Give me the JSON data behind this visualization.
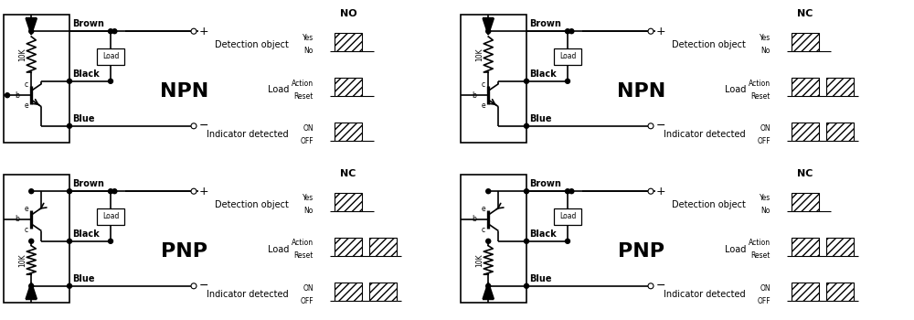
{
  "fig_w": 10.0,
  "fig_h": 3.5,
  "dpi": 100,
  "bg": "#ffffff",
  "lc": "#000000",
  "lw": 1.0,
  "panels": [
    {
      "col": 0,
      "row": 0,
      "transistor": "NPN",
      "mode": "NO",
      "timing": [
        {
          "left": "Detection object",
          "subs": [
            "Yes",
            "No"
          ],
          "type": "single_right"
        },
        {
          "left": "Load",
          "subs": [
            "Action",
            "Reset"
          ],
          "type": "single_right"
        },
        {
          "left": "Indicator detected",
          "subs": [
            "ON",
            "OFF"
          ],
          "type": "single_right"
        }
      ]
    },
    {
      "col": 1,
      "row": 0,
      "transistor": "NPN",
      "mode": "NC",
      "timing": [
        {
          "left": "Detection object",
          "subs": [
            "Yes",
            "No"
          ],
          "type": "single_left"
        },
        {
          "left": "Load",
          "subs": [
            "Action",
            "Reset"
          ],
          "type": "two_bars"
        },
        {
          "left": "Indicator detected",
          "subs": [
            "ON",
            "OFF"
          ],
          "type": "two_bars"
        }
      ]
    },
    {
      "col": 0,
      "row": 1,
      "transistor": "PNP",
      "mode": "NC",
      "timing": [
        {
          "left": "Detection object",
          "subs": [
            "Yes",
            "No"
          ],
          "type": "single_left"
        },
        {
          "left": "Load",
          "subs": [
            "Action",
            "Reset"
          ],
          "type": "two_bars"
        },
        {
          "left": "Indicator detected",
          "subs": [
            "ON",
            "OFF"
          ],
          "type": "two_bars"
        }
      ]
    },
    {
      "col": 1,
      "row": 1,
      "transistor": "PNP",
      "mode": "NC",
      "timing": [
        {
          "left": "Detection object",
          "subs": [
            "Yes",
            "No"
          ],
          "type": "single_left"
        },
        {
          "left": "Load",
          "subs": [
            "Action",
            "Reset"
          ],
          "type": "two_bars"
        },
        {
          "left": "Indicator detected",
          "subs": [
            "ON",
            "OFF"
          ],
          "type": "two_bars"
        }
      ]
    }
  ],
  "fs_wire": 7,
  "fs_small": 5.5,
  "fs_label": 7,
  "fs_mode": 8,
  "fs_npn": 16,
  "hatch": "////"
}
